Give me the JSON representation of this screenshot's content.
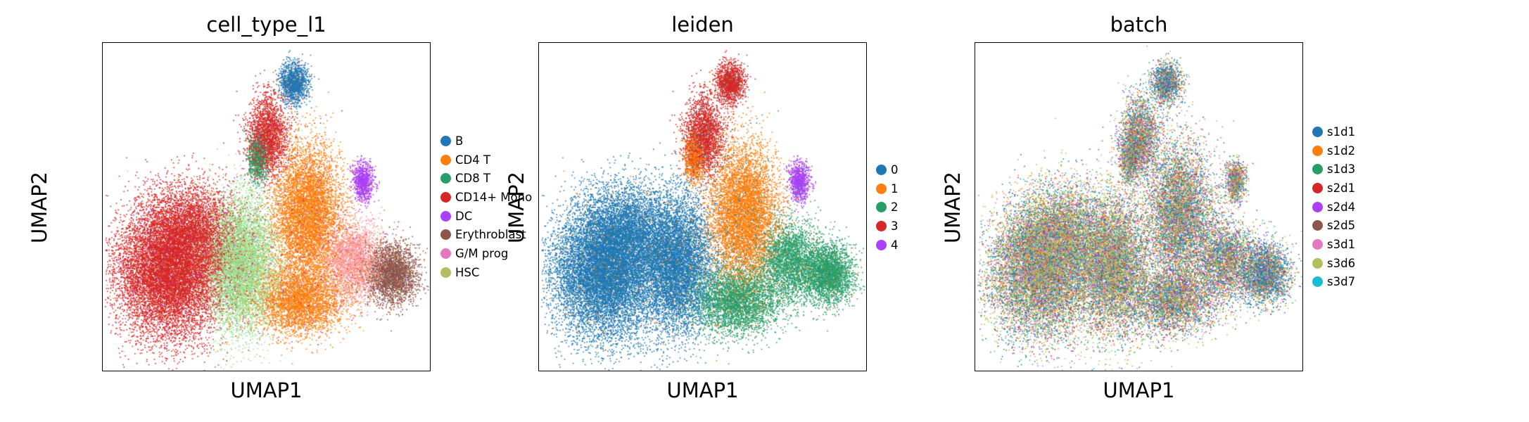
{
  "figure": {
    "panels": [
      {
        "title": "cell_type_l1",
        "xlabel": "UMAP1",
        "ylabel": "UMAP2",
        "legend": [
          {
            "label": "B",
            "color": "#1f77b4"
          },
          {
            "label": "CD4 T",
            "color": "#ff7f0e"
          },
          {
            "label": "CD8 T",
            "color": "#279e68"
          },
          {
            "label": "CD14+ Mono",
            "color": "#d62728"
          },
          {
            "label": "DC",
            "color": "#aa40fc"
          },
          {
            "label": "Erythroblast",
            "color": "#8c564b"
          },
          {
            "label": "G/M prog",
            "color": "#e377c2"
          },
          {
            "label": "HSC",
            "color": "#b5bd61"
          }
        ]
      },
      {
        "title": "leiden",
        "xlabel": "UMAP1",
        "ylabel": "UMAP2",
        "legend": [
          {
            "label": "0",
            "color": "#1f77b4"
          },
          {
            "label": "1",
            "color": "#ff7f0e"
          },
          {
            "label": "2",
            "color": "#279e68"
          },
          {
            "label": "3",
            "color": "#d62728"
          },
          {
            "label": "4",
            "color": "#aa40fc"
          }
        ]
      },
      {
        "title": "batch",
        "xlabel": "UMAP1",
        "ylabel": "UMAP2",
        "legend": [
          {
            "label": "s1d1",
            "color": "#1f77b4"
          },
          {
            "label": "s1d2",
            "color": "#ff7f0e"
          },
          {
            "label": "s1d3",
            "color": "#279e68"
          },
          {
            "label": "s2d1",
            "color": "#d62728"
          },
          {
            "label": "s2d4",
            "color": "#aa40fc"
          },
          {
            "label": "s2d5",
            "color": "#8c564b"
          },
          {
            "label": "s3d1",
            "color": "#e377c2"
          },
          {
            "label": "s3d6",
            "color": "#b5bd61"
          },
          {
            "label": "s3d7",
            "color": "#17becf"
          }
        ]
      }
    ]
  },
  "chart_data": [
    {
      "type": "scatter",
      "title": "cell_type_l1",
      "xlabel": "UMAP1",
      "ylabel": "UMAP2",
      "grid": false,
      "legend_position": "right",
      "categories": [
        "B",
        "CD4 T",
        "CD8 T",
        "CD14+ Mono",
        "DC",
        "Erythroblast",
        "G/M prog",
        "HSC"
      ],
      "colors": [
        "#1f77b4",
        "#ff7f0e",
        "#279e68",
        "#d62728",
        "#aa40fc",
        "#8c564b",
        "#e377c2",
        "#b5bd61"
      ]
    },
    {
      "type": "scatter",
      "title": "leiden",
      "xlabel": "UMAP1",
      "ylabel": "UMAP2",
      "grid": false,
      "legend_position": "right",
      "categories": [
        "0",
        "1",
        "2",
        "3",
        "4"
      ],
      "colors": [
        "#1f77b4",
        "#ff7f0e",
        "#279e68",
        "#d62728",
        "#aa40fc"
      ]
    },
    {
      "type": "scatter",
      "title": "batch",
      "xlabel": "UMAP1",
      "ylabel": "UMAP2",
      "grid": false,
      "legend_position": "right",
      "categories": [
        "s1d1",
        "s1d2",
        "s1d3",
        "s2d1",
        "s2d4",
        "s2d5",
        "s3d1",
        "s3d6",
        "s3d7"
      ],
      "colors": [
        "#1f77b4",
        "#ff7f0e",
        "#279e68",
        "#d62728",
        "#aa40fc",
        "#8c564b",
        "#e377c2",
        "#b5bd61",
        "#17becf"
      ]
    }
  ]
}
